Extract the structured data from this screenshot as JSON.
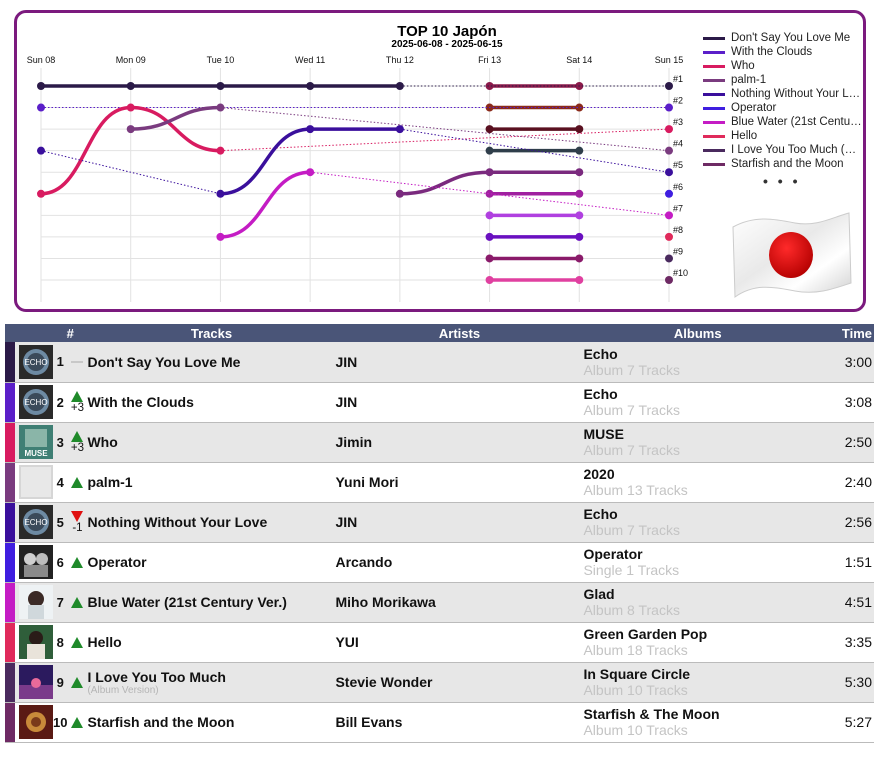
{
  "chart_data": {
    "type": "line",
    "title": "TOP 10 Japón",
    "subtitle": "2025-06-08 - 2025-06-15",
    "x": [
      "Sun 08",
      "Mon 09",
      "Tue 10",
      "Wed 11",
      "Thu 12",
      "Fri 13",
      "Sat 14",
      "Sun 15"
    ],
    "y_tick_labels": [
      "#1",
      "#2",
      "#3",
      "#4",
      "#5",
      "#6",
      "#7",
      "#8",
      "#9",
      "#10"
    ],
    "ylim": [
      1,
      10
    ],
    "y_inverted": true,
    "grid": true,
    "legend_position": "right",
    "legend_more": "• • •",
    "series": [
      {
        "name": "Don't Say You Love Me",
        "color": "#2b1a48",
        "values": [
          1,
          1,
          1,
          1,
          1,
          null,
          null,
          1
        ]
      },
      {
        "name": "With the Clouds",
        "color": "#5b1fc9",
        "values": [
          2,
          null,
          null,
          null,
          null,
          null,
          null,
          2
        ]
      },
      {
        "name": "Who",
        "color": "#d81b60",
        "values": [
          6,
          2,
          4,
          null,
          null,
          null,
          null,
          3
        ]
      },
      {
        "name": "palm-1",
        "color": "#7a3b7f",
        "values": [
          null,
          3,
          2,
          null,
          null,
          null,
          null,
          4
        ]
      },
      {
        "name": "Nothing Without Your Love",
        "color": "#3a0f9c",
        "values": [
          4,
          null,
          6,
          3,
          3,
          null,
          null,
          5
        ]
      },
      {
        "name": "Operator",
        "color": "#3f1ee0",
        "values": [
          null,
          null,
          null,
          null,
          null,
          null,
          null,
          6
        ]
      },
      {
        "name": "Blue Water (21st Century Ver.)",
        "color": "#c41cc4",
        "values": [
          null,
          null,
          8,
          5,
          null,
          null,
          null,
          7
        ]
      },
      {
        "name": "Hello",
        "color": "#e02a5b",
        "values": [
          null,
          null,
          null,
          null,
          null,
          null,
          null,
          8
        ]
      },
      {
        "name": "I Love You Too Much (Album Version)",
        "color": "#4a2a5e",
        "values": [
          null,
          null,
          null,
          null,
          null,
          null,
          null,
          9
        ]
      },
      {
        "name": "Starfish and the Moon",
        "color": "#6e2a64",
        "values": [
          null,
          null,
          null,
          null,
          null,
          null,
          null,
          10
        ]
      }
    ],
    "other_tracks": [
      {
        "color": "#8b1a4a",
        "values": [
          null,
          null,
          null,
          null,
          null,
          1,
          1,
          null
        ]
      },
      {
        "color": "#8b2a1a",
        "values": [
          null,
          null,
          null,
          null,
          null,
          2,
          2,
          null
        ]
      },
      {
        "color": "#5a1020",
        "values": [
          null,
          null,
          null,
          null,
          null,
          3,
          3,
          null
        ]
      },
      {
        "color": "#2f3e4a",
        "values": [
          null,
          null,
          null,
          null,
          null,
          4,
          4,
          null
        ]
      },
      {
        "color": "#7a2a7e",
        "values": [
          null,
          null,
          null,
          null,
          6,
          5,
          5,
          null
        ]
      },
      {
        "color": "#a020a0",
        "values": [
          null,
          null,
          null,
          null,
          null,
          6,
          6,
          null
        ]
      },
      {
        "color": "#b040e0",
        "values": [
          null,
          null,
          null,
          null,
          null,
          7,
          7,
          null
        ]
      },
      {
        "color": "#6a10c0",
        "values": [
          null,
          null,
          null,
          null,
          null,
          8,
          8,
          null
        ]
      },
      {
        "color": "#8a1a6a",
        "values": [
          null,
          null,
          null,
          null,
          null,
          9,
          9,
          null
        ]
      },
      {
        "color": "#e040a0",
        "values": [
          null,
          null,
          null,
          null,
          null,
          10,
          10,
          null
        ]
      }
    ]
  },
  "table": {
    "headers": {
      "num": "#",
      "tracks": "Tracks",
      "artists": "Artists",
      "albums": "Albums",
      "time": "Time"
    },
    "rows": [
      {
        "rank": "1",
        "move": "flat",
        "delta": "",
        "title": "Don't Say You Love Me",
        "subtitle": "",
        "artist": "JIN",
        "album": "Echo",
        "album_info": "Album 7 Tracks",
        "time": "3:00",
        "color": "#2b1a48",
        "cover": "echo-cover"
      },
      {
        "rank": "2",
        "move": "up",
        "delta": "+3",
        "title": "With the Clouds",
        "subtitle": "",
        "artist": "JIN",
        "album": "Echo",
        "album_info": "Album 7 Tracks",
        "time": "3:08",
        "color": "#5b1fc9",
        "cover": "echo-cover"
      },
      {
        "rank": "3",
        "move": "up",
        "delta": "+3",
        "title": "Who",
        "subtitle": "",
        "artist": "Jimin",
        "album": "MUSE",
        "album_info": "Album 7 Tracks",
        "time": "2:50",
        "color": "#d81b60",
        "cover": "muse-cover"
      },
      {
        "rank": "4",
        "move": "up",
        "delta": "",
        "title": "palm-1",
        "subtitle": "",
        "artist": "Yuni Mori",
        "album": "2020",
        "album_info": "Album 13 Tracks",
        "time": "2:40",
        "color": "#7a3b7f",
        "cover": "2020-cover"
      },
      {
        "rank": "5",
        "move": "down",
        "delta": "-1",
        "title": "Nothing Without Your Love",
        "subtitle": "",
        "artist": "JIN",
        "album": "Echo",
        "album_info": "Album 7 Tracks",
        "time": "2:56",
        "color": "#3a0f9c",
        "cover": "echo-cover"
      },
      {
        "rank": "6",
        "move": "up",
        "delta": "",
        "title": "Operator",
        "subtitle": "",
        "artist": "Arcando",
        "album": "Operator",
        "album_info": "Single 1 Tracks",
        "time": "1:51",
        "color": "#3f1ee0",
        "cover": "operator-cover"
      },
      {
        "rank": "7",
        "move": "up",
        "delta": "",
        "title": "Blue Water (21st Century Ver.)",
        "subtitle": "",
        "artist": "Miho Morikawa",
        "album": "Glad",
        "album_info": "Album 8 Tracks",
        "time": "4:51",
        "color": "#c41cc4",
        "cover": "glad-cover"
      },
      {
        "rank": "8",
        "move": "up",
        "delta": "",
        "title": "Hello",
        "subtitle": "",
        "artist": "YUI",
        "album": "Green Garden Pop",
        "album_info": "Album 18 Tracks",
        "time": "3:35",
        "color": "#e02a5b",
        "cover": "green-garden-pop-cover"
      },
      {
        "rank": "9",
        "move": "up",
        "delta": "",
        "title": "I Love You Too Much",
        "subtitle": "(Album Version)",
        "artist": "Stevie Wonder",
        "album": "In Square Circle",
        "album_info": "Album 10 Tracks",
        "time": "5:30",
        "color": "#4a2a5e",
        "cover": "in-square-circle-cover"
      },
      {
        "rank": "10",
        "move": "up",
        "delta": "",
        "title": "Starfish and the Moon",
        "subtitle": "",
        "artist": "Bill Evans",
        "album": "Starfish & The Moon",
        "album_info": "Album 10 Tracks",
        "time": "5:27",
        "color": "#6e2a64",
        "cover": "starfish-cover"
      }
    ]
  }
}
